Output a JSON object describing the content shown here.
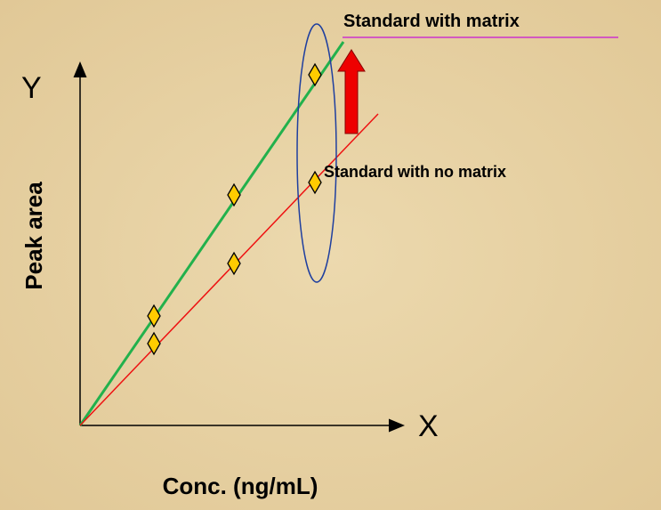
{
  "labels": {
    "y_symbol": "Y",
    "x_symbol": "X",
    "y_axis": "Peak area",
    "x_axis": "Conc. (ng/mL)",
    "series_matrix": "Standard with matrix",
    "series_no_matrix": "Standard with no matrix"
  }
}
